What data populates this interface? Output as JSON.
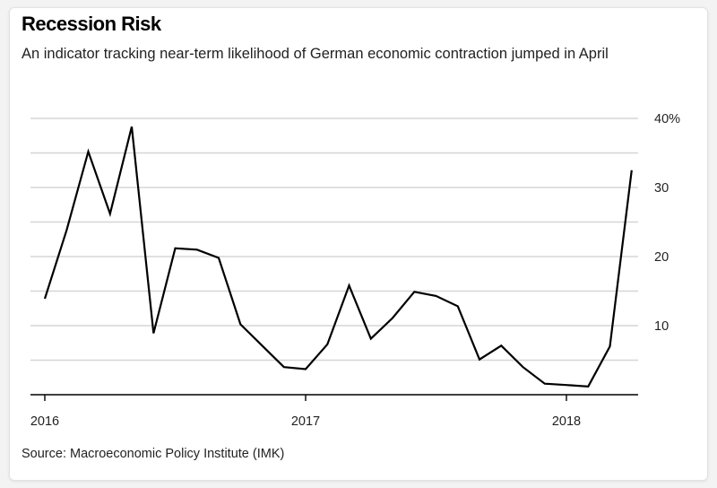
{
  "chart_data": {
    "type": "line",
    "title": "Recession Risk",
    "subtitle": "An indicator tracking near-term likelihood of German economic contraction jumped in April",
    "source": "Source: Macroeconomic Policy Institute (IMK)",
    "xlabel": "",
    "ylabel": "",
    "x_ticks": [
      "2016",
      "2017",
      "2018"
    ],
    "y_ticks": [
      "",
      "10",
      "",
      "20",
      "",
      "30",
      "",
      "40%"
    ],
    "y_tick_values": [
      5,
      10,
      15,
      20,
      25,
      30,
      35,
      40
    ],
    "ylim": [
      0,
      40
    ],
    "grid": true,
    "y_axis_side": "right",
    "line_color": "#000000",
    "x": [
      "2016-01",
      "2016-02",
      "2016-03",
      "2016-04",
      "2016-05",
      "2016-06",
      "2016-07",
      "2016-08",
      "2016-09",
      "2016-10",
      "2016-11",
      "2016-12",
      "2017-01",
      "2017-02",
      "2017-03",
      "2017-04",
      "2017-05",
      "2017-06",
      "2017-07",
      "2017-08",
      "2017-09",
      "2017-10",
      "2017-11",
      "2017-12",
      "2018-01",
      "2018-02",
      "2018-03",
      "2018-04"
    ],
    "series": [
      {
        "values": [
          13.9,
          23.8,
          35.2,
          26.2,
          38.8,
          8.9,
          21.2,
          21.0,
          19.8,
          10.2,
          7.1,
          4.0,
          3.7,
          7.3,
          15.8,
          8.1,
          11.1,
          14.9,
          14.3,
          12.8,
          5.1,
          7.1,
          4.0,
          1.6,
          1.4,
          1.2,
          7.0,
          32.5
        ]
      }
    ]
  }
}
